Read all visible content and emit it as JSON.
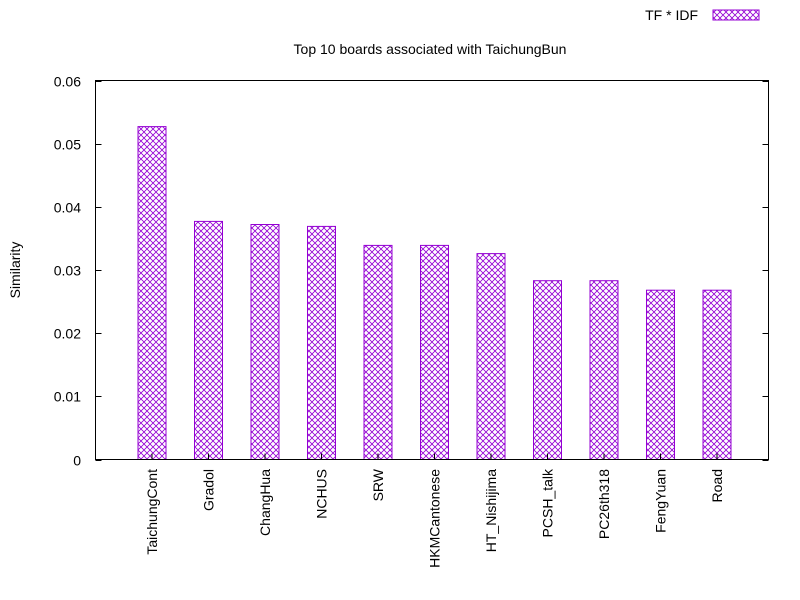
{
  "chart_data": {
    "type": "bar",
    "title": "Top 10 boards associated with TaichungBun",
    "xlabel": "",
    "ylabel": "Similarity",
    "ylim": [
      0,
      0.06
    ],
    "yticks": [
      "0",
      "0.01",
      "0.02",
      "0.03",
      "0.04",
      "0.05",
      "0.06"
    ],
    "grid": false,
    "legend_position": "top-right",
    "categories": [
      "TaichungCont",
      "Gradol",
      "ChangHua",
      "NCHUS",
      "SRW",
      "HKMCantonese",
      "HT_Nishijima",
      "PCSH_talk",
      "PC26th318",
      "FengYuan",
      "Road"
    ],
    "series": [
      {
        "name": "TF * IDF",
        "values": [
          0.0527,
          0.0377,
          0.0372,
          0.0369,
          0.0339,
          0.0339,
          0.0326,
          0.0283,
          0.0283,
          0.0268,
          0.0268
        ]
      }
    ],
    "colors": {
      "bar_stroke": "#9400d3",
      "bar_hatch": "#9400d3",
      "axis": "#000000"
    }
  }
}
